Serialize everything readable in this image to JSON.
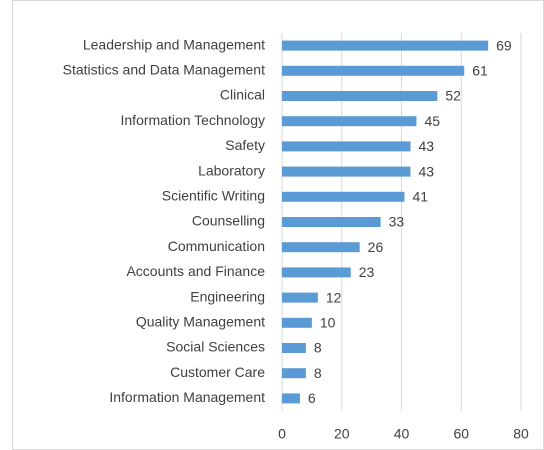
{
  "chart_data": {
    "type": "bar",
    "orientation": "horizontal",
    "categories": [
      "Leadership and Management",
      "Statistics and Data Management",
      "Clinical",
      "Information Technology",
      "Safety",
      "Laboratory",
      "Scientific Writing",
      "Counselling",
      "Communication",
      "Accounts and Finance",
      "Engineering",
      "Quality Management",
      "Social Sciences",
      "Customer Care",
      "Information Management"
    ],
    "values": [
      69,
      61,
      52,
      45,
      43,
      43,
      41,
      33,
      26,
      23,
      12,
      10,
      8,
      8,
      6
    ],
    "color": "#5b9bd5",
    "xlim": [
      0,
      80
    ],
    "xticks": [
      0,
      20,
      40,
      60,
      80
    ],
    "grid": true
  }
}
